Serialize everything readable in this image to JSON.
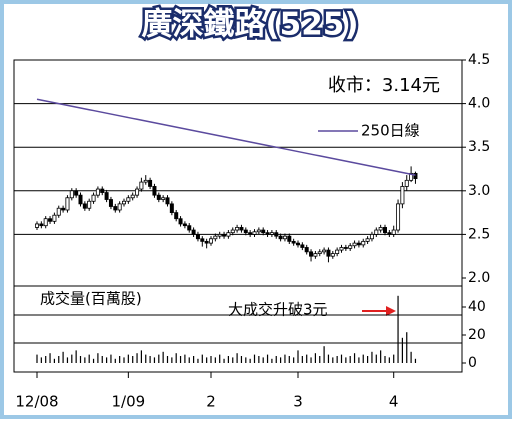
{
  "chart_data": {
    "type": "candlestick",
    "title": "廣深鐵路(525)",
    "close_label": "收市：3.14元",
    "volume_label": "成交量(百萬股)",
    "annotation": "大成交升破3元",
    "categories": [
      "12/08",
      null,
      null,
      null,
      null,
      null,
      null,
      null,
      null,
      null,
      null,
      null,
      null,
      null,
      null,
      null,
      null,
      null,
      null,
      null,
      null,
      "1/09",
      null,
      null,
      null,
      null,
      null,
      null,
      null,
      null,
      null,
      null,
      null,
      null,
      null,
      null,
      null,
      null,
      null,
      null,
      "2",
      null,
      null,
      null,
      null,
      null,
      null,
      null,
      null,
      null,
      null,
      null,
      null,
      null,
      null,
      null,
      null,
      null,
      null,
      null,
      "3",
      null,
      null,
      null,
      null,
      null,
      null,
      null,
      null,
      null,
      null,
      null,
      null,
      null,
      null,
      null,
      null,
      null,
      null,
      null,
      null,
      null,
      "4",
      null,
      null,
      null,
      null,
      null
    ],
    "open": [
      2.58,
      2.62,
      2.6,
      2.68,
      2.65,
      2.72,
      2.8,
      2.78,
      2.92,
      3.0,
      2.95,
      2.85,
      2.8,
      2.88,
      2.95,
      3.02,
      2.98,
      2.9,
      2.82,
      2.78,
      2.85,
      2.88,
      2.92,
      2.95,
      3.02,
      3.1,
      3.12,
      3.05,
      2.95,
      2.9,
      2.92,
      2.85,
      2.75,
      2.68,
      2.62,
      2.6,
      2.55,
      2.5,
      2.45,
      2.42,
      2.4,
      2.45,
      2.48,
      2.5,
      2.48,
      2.52,
      2.55,
      2.58,
      2.55,
      2.52,
      2.5,
      2.53,
      2.55,
      2.52,
      2.5,
      2.52,
      2.48,
      2.45,
      2.48,
      2.42,
      2.4,
      2.38,
      2.35,
      2.3,
      2.25,
      2.28,
      2.3,
      2.32,
      2.25,
      2.28,
      2.32,
      2.35,
      2.34,
      2.37,
      2.4,
      2.38,
      2.42,
      2.45,
      2.5,
      2.55,
      2.58,
      2.52,
      2.5,
      2.55,
      2.85,
      3.05,
      3.12,
      3.2
    ],
    "high": [
      2.65,
      2.65,
      2.71,
      2.71,
      2.75,
      2.83,
      2.83,
      2.95,
      3.03,
      3.03,
      2.98,
      2.88,
      2.91,
      2.98,
      3.05,
      3.05,
      3.01,
      2.93,
      2.85,
      2.88,
      2.91,
      2.95,
      2.98,
      3.05,
      3.15,
      3.18,
      3.15,
      3.08,
      2.98,
      2.95,
      2.95,
      2.88,
      2.78,
      2.71,
      2.65,
      2.63,
      2.58,
      2.53,
      2.48,
      2.45,
      2.48,
      2.51,
      2.53,
      2.53,
      2.55,
      2.58,
      2.61,
      2.61,
      2.58,
      2.55,
      2.56,
      2.58,
      2.58,
      2.55,
      2.55,
      2.55,
      2.51,
      2.51,
      2.51,
      2.45,
      2.43,
      2.41,
      2.38,
      2.33,
      2.31,
      2.33,
      2.35,
      2.35,
      2.31,
      2.35,
      2.38,
      2.38,
      2.4,
      2.43,
      2.43,
      2.45,
      2.48,
      2.53,
      2.58,
      2.61,
      2.61,
      2.55,
      2.6,
      2.9,
      3.1,
      3.18,
      3.28,
      3.22
    ],
    "low": [
      2.55,
      2.57,
      2.57,
      2.62,
      2.62,
      2.69,
      2.75,
      2.75,
      2.89,
      2.92,
      2.82,
      2.77,
      2.77,
      2.85,
      2.92,
      2.95,
      2.87,
      2.79,
      2.75,
      2.75,
      2.82,
      2.85,
      2.89,
      2.92,
      2.99,
      3.07,
      3.02,
      2.92,
      2.87,
      2.87,
      2.82,
      2.72,
      2.65,
      2.59,
      2.57,
      2.52,
      2.47,
      2.42,
      2.36,
      2.34,
      2.37,
      2.42,
      2.45,
      2.45,
      2.45,
      2.49,
      2.52,
      2.52,
      2.49,
      2.47,
      2.47,
      2.5,
      2.49,
      2.47,
      2.47,
      2.45,
      2.42,
      2.42,
      2.39,
      2.37,
      2.35,
      2.32,
      2.27,
      2.19,
      2.22,
      2.25,
      2.27,
      2.18,
      2.22,
      2.25,
      2.29,
      2.31,
      2.31,
      2.34,
      2.35,
      2.35,
      2.39,
      2.42,
      2.47,
      2.52,
      2.49,
      2.47,
      2.47,
      2.52,
      2.8,
      3.0,
      3.1,
      3.08
    ],
    "close": [
      2.62,
      2.6,
      2.68,
      2.65,
      2.72,
      2.8,
      2.78,
      2.92,
      3.0,
      2.95,
      2.85,
      2.8,
      2.88,
      2.95,
      3.02,
      2.98,
      2.9,
      2.82,
      2.78,
      2.85,
      2.88,
      2.92,
      2.95,
      3.02,
      3.1,
      3.12,
      3.05,
      2.95,
      2.9,
      2.92,
      2.85,
      2.75,
      2.68,
      2.62,
      2.6,
      2.55,
      2.5,
      2.45,
      2.42,
      2.4,
      2.45,
      2.48,
      2.5,
      2.48,
      2.52,
      2.55,
      2.58,
      2.55,
      2.52,
      2.5,
      2.53,
      2.55,
      2.52,
      2.5,
      2.52,
      2.48,
      2.45,
      2.48,
      2.42,
      2.4,
      2.38,
      2.35,
      2.3,
      2.25,
      2.28,
      2.3,
      2.32,
      2.25,
      2.28,
      2.32,
      2.35,
      2.34,
      2.37,
      2.4,
      2.38,
      2.42,
      2.45,
      2.5,
      2.55,
      2.58,
      2.52,
      2.5,
      2.55,
      2.85,
      3.05,
      3.12,
      3.2,
      3.14
    ],
    "color": "#000000",
    "ma": {
      "name": "250日線",
      "color": "#5b4a9e",
      "values": [
        4.05,
        4.04,
        4.03,
        4.02,
        4.01,
        4.0,
        3.99,
        3.98,
        3.97,
        3.96,
        3.95,
        3.94,
        3.93,
        3.92,
        3.91,
        3.9,
        3.89,
        3.88,
        3.87,
        3.86,
        3.85,
        3.84,
        3.83,
        3.82,
        3.81,
        3.8,
        3.79,
        3.78,
        3.77,
        3.76,
        3.75,
        3.74,
        3.73,
        3.72,
        3.71,
        3.7,
        3.69,
        3.68,
        3.67,
        3.66,
        3.65,
        3.64,
        3.63,
        3.62,
        3.61,
        3.6,
        3.59,
        3.58,
        3.57,
        3.56,
        3.55,
        3.54,
        3.53,
        3.52,
        3.51,
        3.5,
        3.49,
        3.48,
        3.47,
        3.46,
        3.45,
        3.44,
        3.43,
        3.42,
        3.41,
        3.4,
        3.39,
        3.38,
        3.37,
        3.36,
        3.35,
        3.34,
        3.33,
        3.32,
        3.31,
        3.3,
        3.29,
        3.28,
        3.27,
        3.26,
        3.25,
        3.24,
        3.23,
        3.22,
        3.21,
        3.2,
        3.19,
        3.18
      ]
    },
    "ylim": [
      2.0,
      4.5
    ],
    "yticks": [
      {
        "value": 2,
        "label": "2.0"
      },
      2.5,
      {
        "value": 3,
        "label": "3.0"
      },
      3.5,
      {
        "value": 4,
        "label": "4.0"
      },
      4.5
    ],
    "grid": true,
    "volume": {
      "color": "#000000",
      "ylim": [
        0,
        55
      ],
      "yticks": [
        0,
        20,
        40
      ],
      "values": [
        6,
        4,
        5,
        7,
        3,
        5,
        8,
        4,
        6,
        9,
        5,
        4,
        6,
        3,
        7,
        5,
        4,
        6,
        3,
        5,
        4,
        6,
        5,
        7,
        9,
        6,
        5,
        4,
        6,
        8,
        5,
        4,
        7,
        5,
        6,
        4,
        5,
        3,
        6,
        4,
        5,
        4,
        6,
        3,
        5,
        4,
        7,
        5,
        4,
        3,
        6,
        5,
        4,
        6,
        3,
        5,
        4,
        6,
        5,
        4,
        9,
        5,
        6,
        4,
        7,
        5,
        12,
        6,
        4,
        5,
        6,
        4,
        5,
        7,
        4,
        6,
        5,
        8,
        6,
        9,
        5,
        4,
        6,
        48,
        18,
        22,
        8,
        3
      ]
    }
  }
}
